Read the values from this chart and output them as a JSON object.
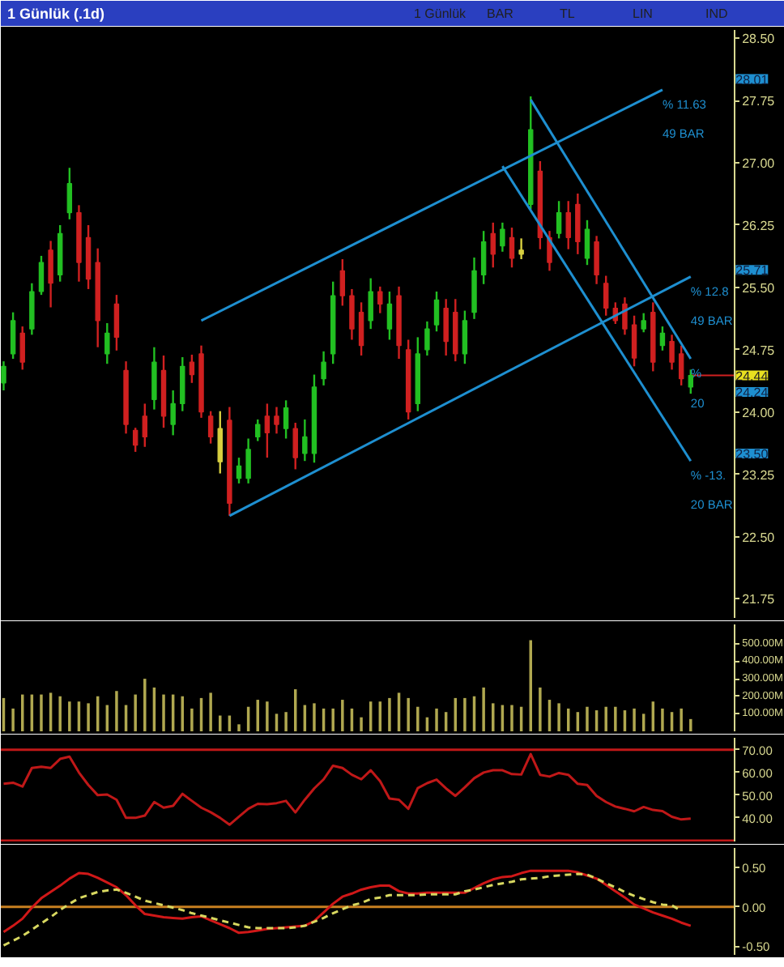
{
  "chart_data": [
    {
      "type": "candlestick",
      "title": "1 Günlük (.1d)",
      "annotations": [
        "1 Günlük",
        "BAR",
        "TL",
        "LIN",
        "IND"
      ],
      "categories": [
        null,
        null,
        null,
        null,
        null,
        null,
        null,
        null,
        null,
        null,
        null,
        null,
        null,
        null,
        null,
        null,
        null,
        null,
        null,
        null,
        null,
        null,
        null,
        null,
        null,
        null,
        null,
        null,
        null,
        null,
        null,
        null,
        null,
        null,
        null,
        null,
        null,
        null,
        null,
        null,
        null,
        null,
        null,
        null,
        null,
        null,
        null,
        null,
        null,
        null,
        null,
        null,
        null,
        null,
        null,
        null,
        null,
        null,
        null,
        null,
        null,
        null,
        null,
        null,
        null,
        null,
        null,
        null,
        null,
        null,
        null,
        null,
        null,
        null
      ],
      "ohlc": [
        [
          24.35,
          24.61,
          24.26,
          24.55
        ],
        [
          24.7,
          25.2,
          24.64,
          25.1
        ],
        [
          24.95,
          25.03,
          24.51,
          24.6
        ],
        [
          25.0,
          25.55,
          24.93,
          25.45
        ],
        [
          25.45,
          25.88,
          25.41,
          25.8
        ],
        [
          25.95,
          26.06,
          25.26,
          25.55
        ],
        [
          25.65,
          26.25,
          25.57,
          26.15
        ],
        [
          26.4,
          26.94,
          26.32,
          26.75
        ],
        [
          26.4,
          26.49,
          25.57,
          25.8
        ],
        [
          26.1,
          26.25,
          25.48,
          25.6
        ],
        [
          25.8,
          25.97,
          24.78,
          25.1
        ],
        [
          24.7,
          25.07,
          24.58,
          24.95
        ],
        [
          25.3,
          25.41,
          24.74,
          24.9
        ],
        [
          24.5,
          24.61,
          23.74,
          23.85
        ],
        [
          23.78,
          23.81,
          23.52,
          23.6
        ],
        [
          23.95,
          24.1,
          23.58,
          23.7
        ],
        [
          24.15,
          24.78,
          24.03,
          24.6
        ],
        [
          24.5,
          24.68,
          23.81,
          23.95
        ],
        [
          23.85,
          24.26,
          23.72,
          24.1
        ],
        [
          24.1,
          24.66,
          24.01,
          24.55
        ],
        [
          24.6,
          24.69,
          24.35,
          24.45
        ],
        [
          24.7,
          24.8,
          23.93,
          24.0
        ],
        [
          23.95,
          24.01,
          23.62,
          23.7
        ],
        [
          23.4,
          24.01,
          23.26,
          23.8
        ],
        [
          23.9,
          24.06,
          22.75,
          22.9
        ],
        [
          23.2,
          23.45,
          23.14,
          23.35
        ],
        [
          23.2,
          23.68,
          23.14,
          23.55
        ],
        [
          23.7,
          23.91,
          23.65,
          23.85
        ],
        [
          23.95,
          24.1,
          23.45,
          23.75
        ],
        [
          23.95,
          24.06,
          23.74,
          23.85
        ],
        [
          23.8,
          24.14,
          23.68,
          24.05
        ],
        [
          23.8,
          23.87,
          23.31,
          23.45
        ],
        [
          23.5,
          23.91,
          23.41,
          23.7
        ],
        [
          23.5,
          24.45,
          23.39,
          24.3
        ],
        [
          24.4,
          24.73,
          24.32,
          24.6
        ],
        [
          24.7,
          25.57,
          24.58,
          25.4
        ],
        [
          25.7,
          25.84,
          25.28,
          25.4
        ],
        [
          25.4,
          25.48,
          24.87,
          25.0
        ],
        [
          25.2,
          25.32,
          24.68,
          24.8
        ],
        [
          25.1,
          25.61,
          25.0,
          25.45
        ],
        [
          25.45,
          25.51,
          25.19,
          25.3
        ],
        [
          25.0,
          25.45,
          24.87,
          25.3
        ],
        [
          25.4,
          25.51,
          24.64,
          24.8
        ],
        [
          24.75,
          24.87,
          23.91,
          24.0
        ],
        [
          24.1,
          24.9,
          24.01,
          24.7
        ],
        [
          24.75,
          25.09,
          24.68,
          25.0
        ],
        [
          25.05,
          25.45,
          24.97,
          25.35
        ],
        [
          25.25,
          25.36,
          24.68,
          24.85
        ],
        [
          25.2,
          25.36,
          24.61,
          24.7
        ],
        [
          24.7,
          25.22,
          24.58,
          25.1
        ],
        [
          25.2,
          25.86,
          25.12,
          25.7
        ],
        [
          25.65,
          26.18,
          25.54,
          26.05
        ],
        [
          26.15,
          26.28,
          25.74,
          25.9
        ],
        [
          26.0,
          26.28,
          25.93,
          26.2
        ],
        [
          26.1,
          26.22,
          25.74,
          25.85
        ],
        [
          25.9,
          26.09,
          25.84,
          25.95
        ],
        [
          26.5,
          27.8,
          26.44,
          27.4
        ],
        [
          26.9,
          27.02,
          25.96,
          26.1
        ],
        [
          26.1,
          26.18,
          25.7,
          25.8
        ],
        [
          26.15,
          26.54,
          26.09,
          26.4
        ],
        [
          26.4,
          26.54,
          25.96,
          26.1
        ],
        [
          26.5,
          26.63,
          25.9,
          26.05
        ],
        [
          25.85,
          26.31,
          25.77,
          26.2
        ],
        [
          26.05,
          26.12,
          25.54,
          25.65
        ],
        [
          25.55,
          25.64,
          25.16,
          25.25
        ],
        [
          25.25,
          25.32,
          25.06,
          25.1
        ],
        [
          25.3,
          25.38,
          24.93,
          25.0
        ],
        [
          25.05,
          25.16,
          24.55,
          24.65
        ],
        [
          25.0,
          25.19,
          24.96,
          25.1
        ],
        [
          25.2,
          25.32,
          24.49,
          24.6
        ],
        [
          24.8,
          25.03,
          24.74,
          24.95
        ],
        [
          24.85,
          24.93,
          24.51,
          24.6
        ],
        [
          24.7,
          24.8,
          24.32,
          24.4
        ],
        [
          24.3,
          24.51,
          24.22,
          24.44
        ]
      ],
      "colors": [
        "#22c022",
        "#22c022",
        "#d02020",
        "#22c022",
        "#22c022",
        "#d02020",
        "#22c022",
        "#22c022",
        "#d02020",
        "#d02020",
        "#d02020",
        "#22c022",
        "#d02020",
        "#d02020",
        "#d02020",
        "#d02020",
        "#22c022",
        "#d02020",
        "#22c022",
        "#22c022",
        "#d02020",
        "#d02020",
        "#d02020",
        "#d8d040",
        "#d02020",
        "#22c022",
        "#22c022",
        "#22c022",
        "#d02020",
        "#d02020",
        "#22c022",
        "#d02020",
        "#22c022",
        "#22c022",
        "#22c022",
        "#22c022",
        "#d02020",
        "#d02020",
        "#d02020",
        "#22c022",
        "#d02020",
        "#22c022",
        "#d02020",
        "#d02020",
        "#22c022",
        "#22c022",
        "#22c022",
        "#d02020",
        "#d02020",
        "#22c022",
        "#22c022",
        "#22c022",
        "#d02020",
        "#22c022",
        "#d02020",
        "#d8d040",
        "#22c022",
        "#d02020",
        "#d02020",
        "#22c022",
        "#d02020",
        "#d02020",
        "#22c022",
        "#d02020",
        "#d02020",
        "#d02020",
        "#d02020",
        "#d02020",
        "#22c022",
        "#d02020",
        "#22c022",
        "#d02020",
        "#d02020",
        "#22c022"
      ],
      "series": [
        {
          "type": "line",
          "name": "% 11.63\n49 BAR",
          "color": "#1e8fd0",
          "values": [
            null,
            null,
            null,
            null,
            null,
            null,
            null,
            null,
            null,
            null,
            null,
            null,
            null,
            null,
            null,
            null,
            null,
            null,
            null,
            null,
            null,
            25.1,
            null,
            null,
            null,
            null,
            null,
            null,
            null,
            null,
            null,
            null,
            null,
            null,
            null,
            null,
            null,
            null,
            null,
            null,
            null,
            null,
            null,
            null,
            null,
            null,
            null,
            null,
            null,
            null,
            null,
            null,
            null,
            null,
            null,
            null,
            null,
            null,
            null,
            null,
            null,
            null,
            null,
            null,
            null,
            null,
            null,
            null,
            null,
            null,
            27.88,
            null,
            null,
            null
          ]
        },
        {
          "type": "line",
          "name": "% 12.8\n49 BAR",
          "color": "#1e8fd0",
          "values": [
            null,
            null,
            null,
            null,
            null,
            null,
            null,
            null,
            null,
            null,
            null,
            null,
            null,
            null,
            null,
            null,
            null,
            null,
            null,
            null,
            null,
            null,
            null,
            null,
            22.75,
            null,
            null,
            null,
            null,
            null,
            null,
            null,
            null,
            null,
            null,
            null,
            null,
            null,
            null,
            null,
            null,
            null,
            null,
            null,
            null,
            null,
            null,
            null,
            null,
            null,
            null,
            null,
            null,
            null,
            null,
            null,
            null,
            null,
            null,
            null,
            null,
            null,
            null,
            null,
            null,
            null,
            null,
            null,
            null,
            null,
            null,
            null,
            null,
            25.63
          ]
        },
        {
          "type": "line",
          "name": "% -13.\n20 BAR",
          "color": "#1e8fd0",
          "values": [
            null,
            null,
            null,
            null,
            null,
            null,
            null,
            null,
            null,
            null,
            null,
            null,
            null,
            null,
            null,
            null,
            null,
            null,
            null,
            null,
            null,
            null,
            null,
            null,
            null,
            null,
            null,
            null,
            null,
            null,
            null,
            null,
            null,
            null,
            null,
            null,
            null,
            null,
            null,
            null,
            null,
            null,
            null,
            null,
            null,
            null,
            null,
            null,
            null,
            null,
            null,
            null,
            null,
            26.96,
            null,
            null,
            null,
            null,
            null,
            null,
            null,
            null,
            null,
            null,
            null,
            null,
            null,
            null,
            null,
            null,
            null,
            null,
            null,
            23.41
          ]
        },
        {
          "type": "line",
          "name": "%\n20",
          "color": "#1e8fd0",
          "values": [
            null,
            null,
            null,
            null,
            null,
            null,
            null,
            null,
            null,
            null,
            null,
            null,
            null,
            null,
            null,
            null,
            null,
            null,
            null,
            null,
            null,
            null,
            null,
            null,
            null,
            null,
            null,
            null,
            null,
            null,
            null,
            null,
            null,
            null,
            null,
            null,
            null,
            null,
            null,
            null,
            null,
            null,
            null,
            null,
            null,
            null,
            null,
            null,
            null,
            null,
            null,
            null,
            null,
            null,
            null,
            null,
            27.76,
            null,
            null,
            null,
            null,
            null,
            null,
            null,
            null,
            null,
            null,
            null,
            null,
            null,
            null,
            null,
            null,
            24.64
          ]
        }
      ],
      "ref_lines": [
        {
          "axis": "y",
          "value": 24.44,
          "label": "24.44",
          "color": "#d02020"
        }
      ],
      "ylim": [
        21.52,
        28.6
      ],
      "yticks": [
        {
          "value": 21.75,
          "label": "21.75"
        },
        {
          "value": 22.5,
          "label": "22.50"
        },
        {
          "value": 23.25,
          "label": "23.25"
        },
        {
          "value": 24,
          "label": "24.00"
        },
        {
          "value": 24.75,
          "label": "24.75"
        },
        {
          "value": 25.5,
          "label": "25.50"
        },
        {
          "value": 26.25,
          "label": "26.25"
        },
        {
          "value": 27,
          "label": "27.00"
        },
        {
          "value": 27.75,
          "label": "27.75"
        },
        {
          "value": 28.5,
          "label": "28.50"
        }
      ],
      "y2lim": [
        21.52,
        28.6
      ],
      "y2ticks": [
        {
          "value": 23.5,
          "label": "23.50"
        },
        {
          "value": 24.24,
          "label": "24.24"
        },
        {
          "value": 25.71,
          "label": "25.71"
        },
        {
          "value": 28.01,
          "label": "28.01"
        }
      ],
      "tick_labels": "y"
    },
    {
      "type": "bar",
      "color": "#b0a850",
      "categories": [
        null,
        null,
        null,
        null,
        null,
        null,
        null,
        null,
        null,
        null,
        null,
        null,
        null,
        null,
        null,
        null,
        null,
        null,
        null,
        null,
        null,
        null,
        null,
        null,
        null,
        null,
        null,
        null,
        null,
        null,
        null,
        null,
        null,
        null,
        null,
        null,
        null,
        null,
        null,
        null,
        null,
        null,
        null,
        null,
        null,
        null,
        null,
        null,
        null,
        null,
        null,
        null,
        null,
        null,
        null,
        null,
        null,
        null,
        null,
        null,
        null,
        null,
        null,
        null,
        null,
        null,
        null,
        null,
        null,
        null,
        null,
        null,
        null,
        null
      ],
      "values": [
        190,
        130,
        210,
        210,
        210,
        220,
        200,
        170,
        170,
        160,
        200,
        150,
        230,
        150,
        210,
        300,
        250,
        210,
        210,
        200,
        130,
        190,
        220,
        90,
        90,
        40,
        140,
        180,
        170,
        100,
        110,
        240,
        150,
        160,
        130,
        130,
        180,
        130,
        80,
        170,
        170,
        190,
        220,
        190,
        140,
        80,
        130,
        110,
        190,
        190,
        200,
        250,
        160,
        150,
        150,
        140,
        520,
        250,
        180,
        160,
        130,
        110,
        140,
        120,
        140,
        140,
        120,
        130,
        100,
        170,
        130,
        110,
        130,
        70
      ],
      "ylim": [
        0,
        610
      ],
      "yticks": [
        {
          "value": 100,
          "label": "100.00M"
        },
        {
          "value": 200,
          "label": "200.00M"
        },
        {
          "value": 300,
          "label": "300.00M"
        },
        {
          "value": 400,
          "label": "400.00M"
        },
        {
          "value": 500,
          "label": "500.00M"
        }
      ],
      "tick_labels": "y"
    },
    {
      "type": "line",
      "categories": [
        null,
        null,
        null,
        null,
        null,
        null,
        null,
        null,
        null,
        null,
        null,
        null,
        null,
        null,
        null,
        null,
        null,
        null,
        null,
        null,
        null,
        null,
        null,
        null,
        null,
        null,
        null,
        null,
        null,
        null,
        null,
        null,
        null,
        null,
        null,
        null,
        null,
        null,
        null,
        null,
        null,
        null,
        null,
        null,
        null,
        null,
        null,
        null,
        null,
        null,
        null,
        null,
        null,
        null,
        null,
        null,
        null,
        null,
        null,
        null,
        null,
        null,
        null,
        null,
        null,
        null,
        null,
        null,
        null,
        null,
        null,
        null,
        null,
        null
      ],
      "series": [
        {
          "color": "#c01818",
          "values": [
            55,
            55.5,
            53.8,
            62,
            62.5,
            62,
            66,
            67,
            60,
            54.5,
            50,
            50.3,
            48,
            40,
            40,
            41,
            47,
            44.5,
            45.3,
            50.6,
            47.5,
            44.5,
            42.5,
            40,
            37,
            40.5,
            44,
            46.2,
            46,
            46.5,
            47.5,
            42.4,
            48,
            53,
            57,
            63,
            62,
            59,
            57,
            61,
            56.2,
            48.5,
            48,
            44,
            53.1,
            55.3,
            56.9,
            53,
            49.7,
            53.5,
            57.5,
            60,
            61,
            61,
            59.3,
            59.1,
            68.1,
            59,
            58.2,
            59.8,
            59,
            55,
            54.5,
            49.7,
            47,
            45,
            44,
            42.9,
            44.8,
            43.5,
            43,
            40.5,
            39.3,
            39.7
          ]
        }
      ],
      "ref_lines": [
        {
          "axis": "y",
          "value": 70,
          "color": "#c01818"
        },
        {
          "axis": "y",
          "value": 30,
          "color": "#c01818"
        }
      ],
      "ylim": [
        29.6,
        75.3
      ],
      "yticks": [
        {
          "value": 40,
          "label": "40.00"
        },
        {
          "value": 50,
          "label": "50.00"
        },
        {
          "value": 60,
          "label": "60.00"
        },
        {
          "value": 70,
          "label": "70.00"
        }
      ],
      "tick_labels": "y"
    },
    {
      "type": "line",
      "categories": [
        null,
        null,
        null,
        null,
        null,
        null,
        null,
        null,
        null,
        null,
        null,
        null,
        null,
        null,
        null,
        null,
        null,
        null,
        null,
        null,
        null,
        null,
        null,
        null,
        null,
        null,
        null,
        null,
        null,
        null,
        null,
        null,
        null,
        null,
        null,
        null,
        null,
        null,
        null,
        null,
        null,
        null,
        null,
        null,
        null,
        null,
        null,
        null,
        null,
        null,
        null,
        null,
        null,
        null,
        null,
        null,
        null,
        null,
        null,
        null,
        null,
        null,
        null,
        null,
        null,
        null,
        null,
        null,
        null,
        null,
        null,
        null,
        null,
        null
      ],
      "series": [
        {
          "color": "#d01818",
          "values": [
            -0.32,
            -0.24,
            -0.15,
            -0.01,
            0.11,
            0.19,
            0.27,
            0.36,
            0.43,
            0.42,
            0.37,
            0.31,
            0.25,
            0.15,
            0.02,
            -0.09,
            -0.11,
            -0.13,
            -0.14,
            -0.15,
            -0.13,
            -0.12,
            -0.17,
            -0.22,
            -0.27,
            -0.33,
            -0.32,
            -0.3,
            -0.28,
            -0.27,
            -0.26,
            -0.25,
            -0.24,
            -0.18,
            -0.07,
            0.04,
            0.13,
            0.17,
            0.22,
            0.25,
            0.27,
            0.27,
            0.2,
            0.17,
            0.17,
            0.18,
            0.18,
            0.18,
            0.18,
            0.18,
            0.24,
            0.3,
            0.35,
            0.38,
            0.39,
            0.43,
            0.46,
            0.46,
            0.46,
            0.46,
            0.46,
            0.44,
            0.4,
            0.36,
            0.28,
            0.2,
            0.12,
            0.03,
            -0.02,
            -0.07,
            -0.11,
            -0.15,
            -0.2,
            -0.24
          ]
        },
        {
          "color": "#d8d860",
          "line_style": "dashed",
          "values": [
            -0.49,
            -0.43,
            -0.37,
            -0.29,
            -0.21,
            -0.13,
            -0.04,
            0.04,
            0.11,
            0.15,
            0.19,
            0.21,
            0.22,
            0.18,
            0.13,
            0.08,
            0.05,
            0.02,
            -0.01,
            -0.04,
            -0.08,
            -0.11,
            -0.14,
            -0.17,
            -0.2,
            -0.23,
            -0.26,
            -0.27,
            -0.27,
            -0.27,
            -0.27,
            -0.26,
            -0.24,
            -0.19,
            -0.14,
            -0.08,
            -0.03,
            0.02,
            0.05,
            0.1,
            0.12,
            0.15,
            0.15,
            0.15,
            0.15,
            0.16,
            0.16,
            0.16,
            0.16,
            0.2,
            0.22,
            0.25,
            0.28,
            0.3,
            0.32,
            0.35,
            0.36,
            0.37,
            0.39,
            0.4,
            0.41,
            0.42,
            0.41,
            0.36,
            0.3,
            0.25,
            0.19,
            0.14,
            0.1,
            0.06,
            0.03,
            0.02,
            -0.05,
            null
          ]
        }
      ],
      "ref_lines": [
        {
          "axis": "y",
          "value": 0,
          "color": "#c88020"
        }
      ],
      "ylim": [
        -0.61,
        0.75
      ],
      "yticks": [
        {
          "value": -0.5,
          "label": "-0.50"
        },
        {
          "value": 0,
          "label": "0.00"
        },
        {
          "value": 0.5,
          "label": "0.50"
        }
      ],
      "tick_labels": "y"
    }
  ]
}
